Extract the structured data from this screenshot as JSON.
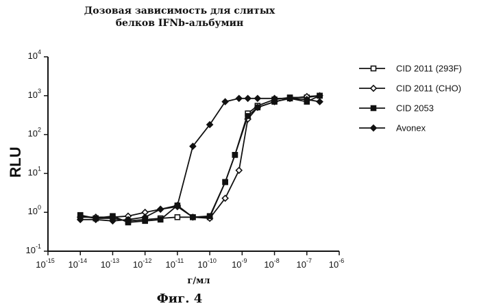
{
  "chart_data": {
    "type": "line",
    "title_line1": "Дозовая зависимость для слитых",
    "title_line2": "белков IFNb-альбумин",
    "xlabel": "г/мл",
    "ylabel": "RLU",
    "figure_caption": "Фиг. 4",
    "x_scale": "log",
    "y_scale": "log",
    "xlim": [
      1e-15,
      1e-06
    ],
    "ylim": [
      0.1,
      10000
    ],
    "x_ticks": [
      {
        "base": "10",
        "exp": "-15",
        "value": 1e-15
      },
      {
        "base": "10",
        "exp": "-14",
        "value": 1e-14
      },
      {
        "base": "10",
        "exp": "-13",
        "value": 1e-13
      },
      {
        "base": "10",
        "exp": "-12",
        "value": 1e-12
      },
      {
        "base": "10",
        "exp": "-11",
        "value": 1e-11
      },
      {
        "base": "10",
        "exp": "-10",
        "value": 1e-10
      },
      {
        "base": "10",
        "exp": "-9",
        "value": 1e-09
      },
      {
        "base": "10",
        "exp": "-8",
        "value": 1e-08
      },
      {
        "base": "10",
        "exp": "-7",
        "value": 1e-07
      },
      {
        "base": "10",
        "exp": "-6",
        "value": 1e-06
      }
    ],
    "y_ticks": [
      {
        "base": "10",
        "exp": "4",
        "value": 10000
      },
      {
        "base": "10",
        "exp": "3",
        "value": 1000
      },
      {
        "base": "10",
        "exp": "2",
        "value": 100
      },
      {
        "base": "10",
        "exp": "1",
        "value": 10
      },
      {
        "base": "10",
        "exp": "0",
        "value": 1
      },
      {
        "base": "10",
        "exp": "-1",
        "value": 0.1
      }
    ],
    "legend_position": "right",
    "series": [
      {
        "name": "CID 2011 (293F)",
        "marker": "open-square",
        "x": [
          1e-14,
          3e-14,
          1e-13,
          3e-13,
          1e-12,
          3e-12,
          1e-11,
          3e-11,
          1e-10,
          3e-10,
          6e-10,
          1.5e-09,
          3e-09,
          1e-08,
          3e-08,
          1e-07,
          2.5e-07
        ],
        "y": [
          0.8,
          0.7,
          0.7,
          0.6,
          0.65,
          0.7,
          0.75,
          0.75,
          0.75,
          6,
          30,
          350,
          550,
          800,
          900,
          900,
          1000
        ]
      },
      {
        "name": "CID 2011 (CHO)",
        "marker": "open-diamond",
        "x": [
          1e-14,
          3e-14,
          1e-13,
          3e-13,
          1e-12,
          3e-12,
          1e-11,
          3e-11,
          1e-10,
          3e-10,
          8e-10,
          1.5e-09,
          3e-09,
          1e-08,
          3e-08,
          1e-07,
          2.5e-07
        ],
        "y": [
          0.75,
          0.75,
          0.75,
          0.8,
          1.0,
          1.2,
          1.4,
          0.75,
          0.7,
          2.3,
          12,
          250,
          500,
          700,
          850,
          950,
          1000
        ]
      },
      {
        "name": "CID 2053",
        "marker": "filled-square",
        "x": [
          1e-14,
          3e-14,
          1e-13,
          3e-13,
          1e-12,
          3e-12,
          1e-11,
          3e-11,
          1e-10,
          3e-10,
          6e-10,
          1.5e-09,
          3e-09,
          1e-08,
          3e-08,
          1e-07,
          2.5e-07
        ],
        "y": [
          0.85,
          0.7,
          0.8,
          0.55,
          0.6,
          0.65,
          1.5,
          0.75,
          0.8,
          6,
          30,
          300,
          500,
          700,
          850,
          700,
          1000
        ]
      },
      {
        "name": "Avonex",
        "marker": "filled-diamond",
        "x": [
          1e-14,
          3e-14,
          1e-13,
          3e-13,
          1e-12,
          3e-12,
          1e-11,
          3e-11,
          1e-10,
          3e-10,
          8e-10,
          1.5e-09,
          3e-09,
          1e-08,
          3e-08,
          1e-07,
          2.5e-07
        ],
        "y": [
          0.65,
          0.65,
          0.6,
          0.65,
          0.75,
          1.2,
          1.5,
          50,
          180,
          700,
          850,
          850,
          850,
          850,
          850,
          800,
          700
        ]
      }
    ]
  }
}
